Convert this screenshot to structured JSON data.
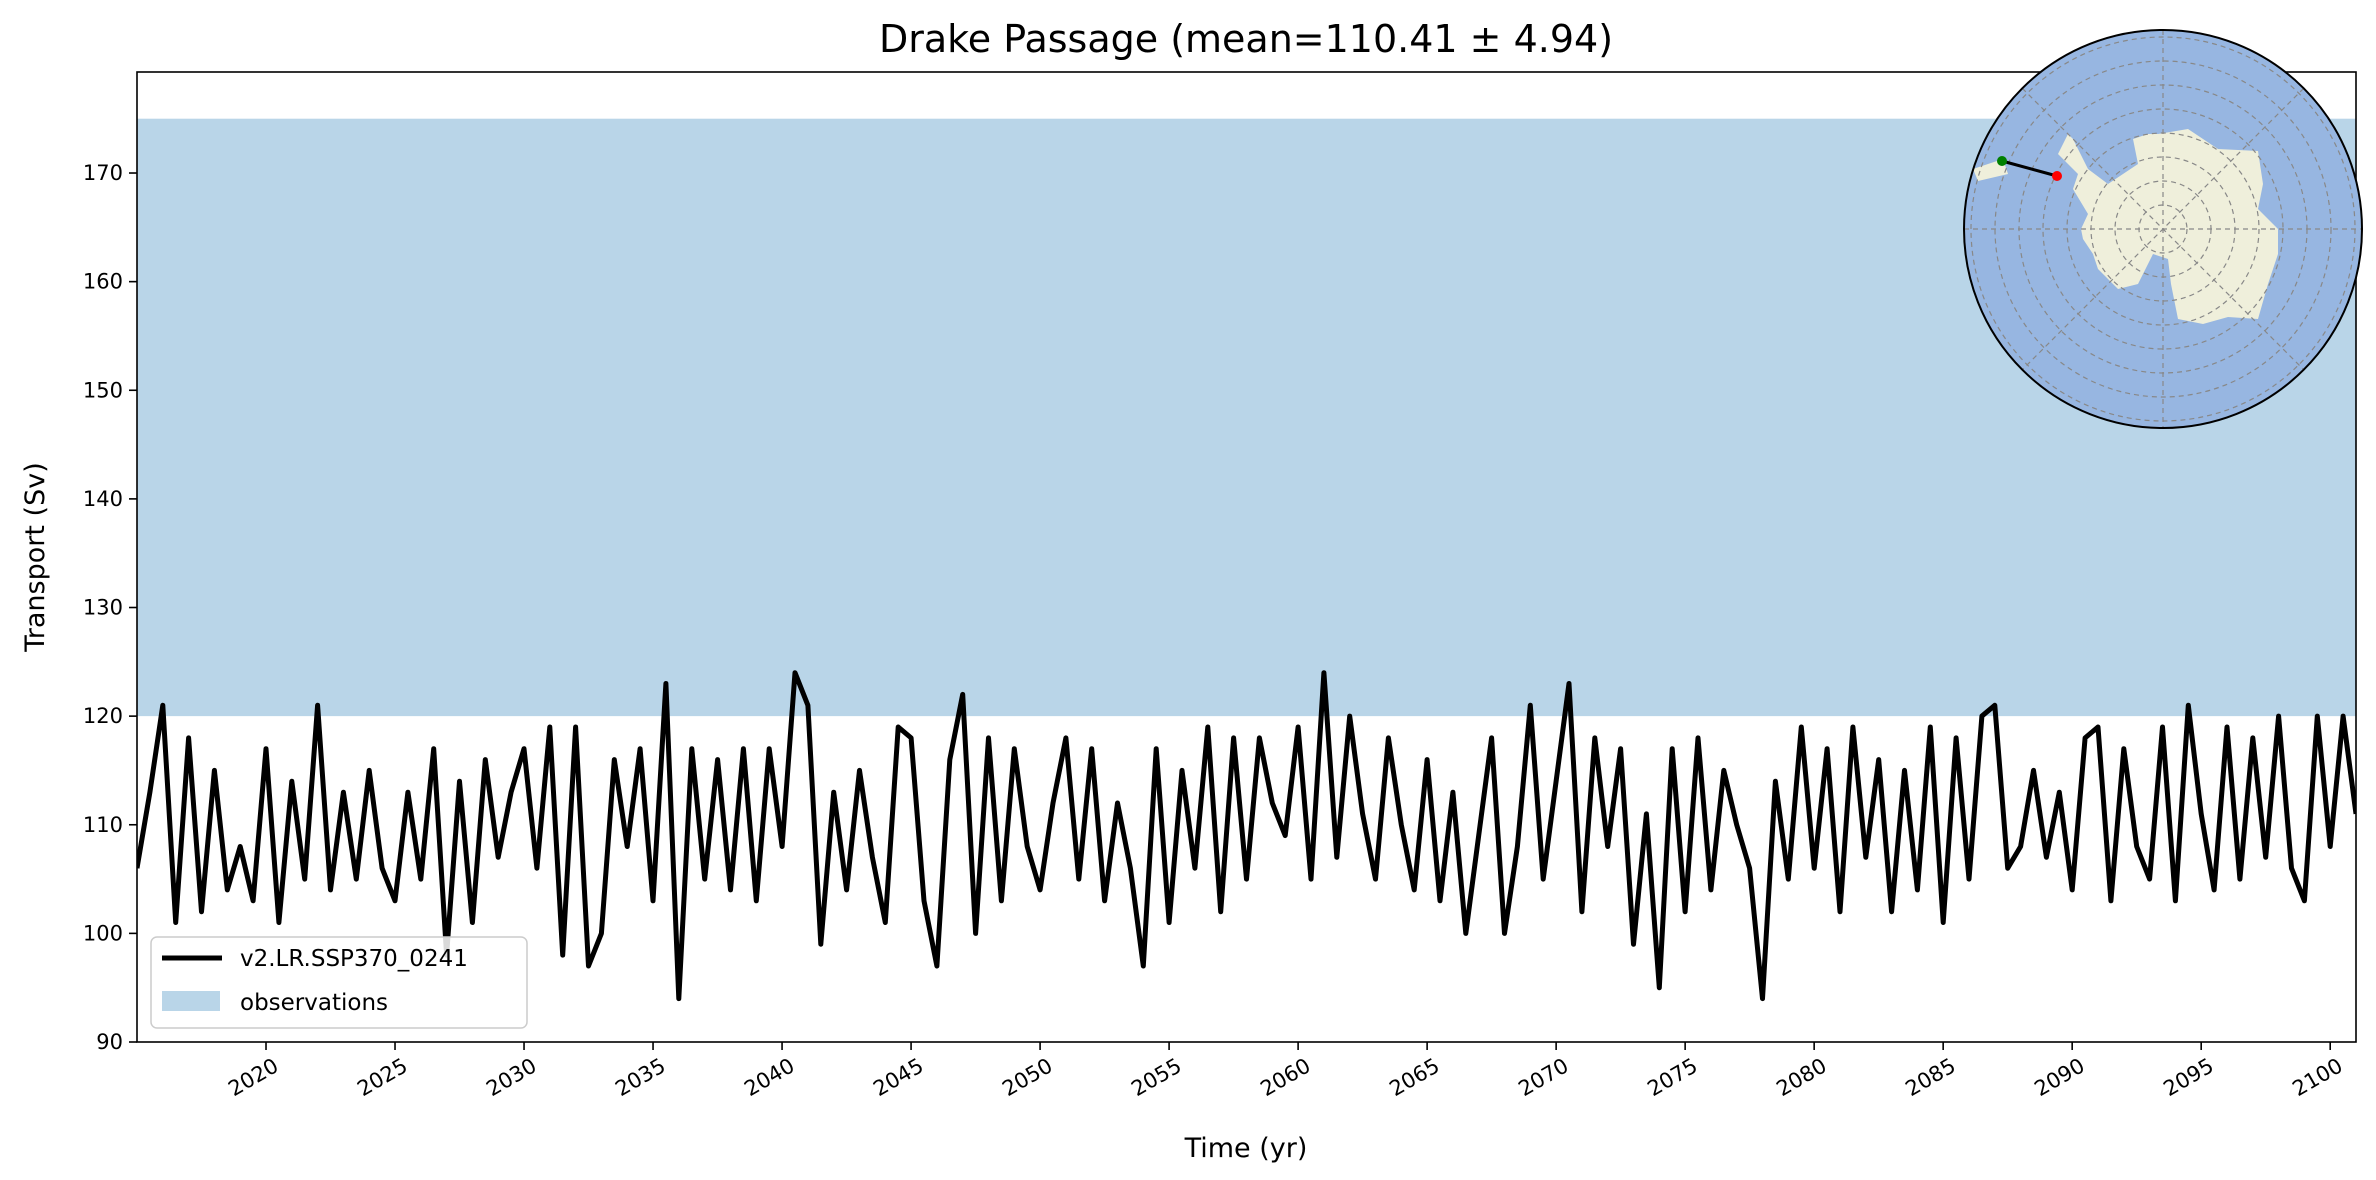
{
  "chart_data": {
    "type": "line",
    "title": "Drake Passage (mean=110.41 ± 4.94)",
    "xlabel": "Time (yr)",
    "ylabel": "Transport (Sv)",
    "xlim": [
      2015,
      2101
    ],
    "ylim": [
      90,
      179.3
    ],
    "xticks": [
      2020,
      2025,
      2030,
      2035,
      2040,
      2045,
      2050,
      2055,
      2060,
      2065,
      2070,
      2075,
      2080,
      2085,
      2090,
      2095,
      2100
    ],
    "yticks": [
      90,
      100,
      110,
      120,
      130,
      140,
      150,
      160,
      170
    ],
    "grid": false,
    "legend_position": "lower-left",
    "observations": {
      "name": "observations",
      "range": [
        120,
        175
      ],
      "color": "#b9d5e8"
    },
    "series": [
      {
        "name": "v2.LR.SSP370_0241",
        "color": "#000000",
        "x_start": 2015.0,
        "x_step": 0.5,
        "values": [
          106,
          113,
          121,
          101,
          118,
          102,
          115,
          104,
          108,
          103,
          117,
          101,
          114,
          105,
          121,
          104,
          113,
          105,
          115,
          106,
          103,
          113,
          105,
          117,
          98,
          114,
          101,
          116,
          107,
          113,
          117,
          106,
          119,
          98,
          119,
          97,
          100,
          116,
          108,
          117,
          103,
          123,
          94,
          117,
          105,
          116,
          104,
          117,
          103,
          117,
          108,
          124,
          121,
          99,
          113,
          104,
          115,
          107,
          101,
          119,
          118,
          103,
          97,
          116,
          122,
          100,
          118,
          103,
          117,
          108,
          104,
          112,
          118,
          105,
          117,
          103,
          112,
          106,
          97,
          117,
          101,
          115,
          106,
          119,
          102,
          118,
          105,
          118,
          112,
          109,
          119,
          105,
          124,
          107,
          120,
          111,
          105,
          118,
          110,
          104,
          116,
          103,
          113,
          100,
          109,
          118,
          100,
          108,
          121,
          105,
          114,
          123,
          102,
          118,
          108,
          117,
          99,
          111,
          95,
          117,
          102,
          118,
          104,
          115,
          110,
          106,
          94,
          114,
          105,
          119,
          106,
          117,
          102,
          119,
          107,
          116,
          102,
          115,
          104,
          119,
          101,
          118,
          105,
          120,
          121,
          106,
          108,
          115,
          107,
          113,
          104,
          118,
          119,
          103,
          117,
          108,
          105,
          119,
          103,
          121,
          111,
          104,
          119,
          105,
          118,
          107,
          120,
          106,
          103,
          120,
          108,
          120,
          111
        ]
      }
    ]
  },
  "inset_map": {
    "projection": "south-polar-stereographic",
    "ocean_color": "#97b6e1",
    "land_color": "#efefdb",
    "section_start_color": "#008000",
    "section_end_color": "#ff0000"
  }
}
